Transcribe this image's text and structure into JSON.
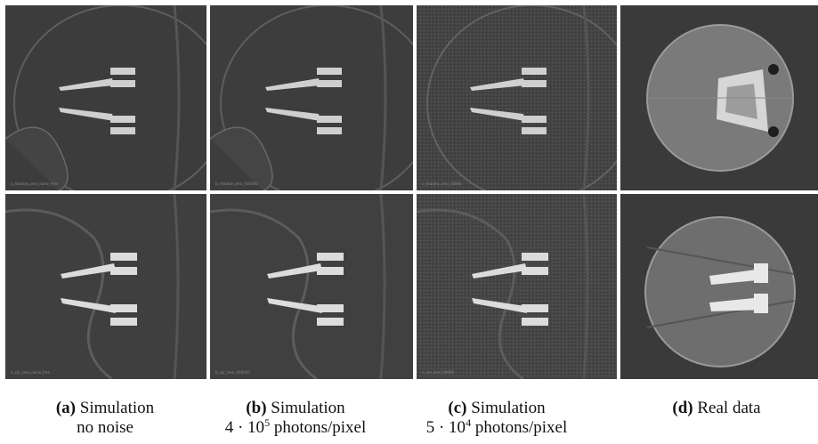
{
  "figure": {
    "panels": [
      {
        "id": "a",
        "kind": "simulation",
        "noise": "none",
        "overlay_top": "a_shadow_zero_noise_free",
        "overlay_bottom": "a_cpr_zero_noise_free"
      },
      {
        "id": "b",
        "kind": "simulation",
        "noise": "medium",
        "overlay_top": "b_shadow_zero_400000",
        "overlay_bottom": "b_cpr_zero_400000"
      },
      {
        "id": "c",
        "kind": "simulation",
        "noise": "high",
        "overlay_top": "c_shadow_zero_50000",
        "overlay_bottom": "c_cpr_zero_50000"
      },
      {
        "id": "d",
        "kind": "real"
      }
    ],
    "captions": {
      "a": {
        "label": "(a)",
        "text": "Simulation",
        "line2": "no noise"
      },
      "b": {
        "label": "(b)",
        "text": "Simulation",
        "line2_base": "4 · 10",
        "line2_exp": "5",
        "line2_unit": " photons/pixel"
      },
      "c": {
        "label": "(c)",
        "text": "Simulation",
        "line2_base": "5 · 10",
        "line2_exp": "4",
        "line2_unit": " photons/pixel"
      },
      "d": {
        "label": "(d)",
        "text": "Real data"
      }
    },
    "colors": {
      "background": "#3a3a3a",
      "screw": "#d8d8d8",
      "bone_edge": "#6a6a6a"
    }
  }
}
